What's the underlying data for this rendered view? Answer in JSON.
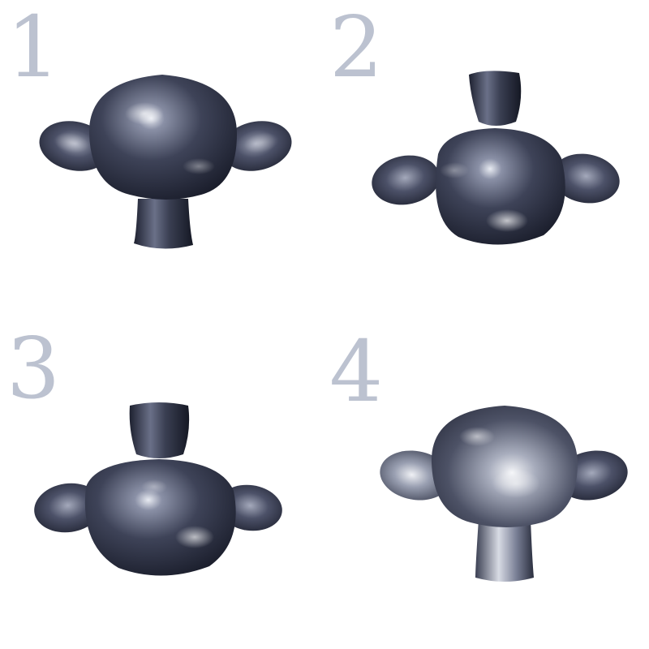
{
  "panels": [
    {
      "label": "1",
      "orientation": "upright",
      "ears": "level"
    },
    {
      "label": "2",
      "orientation": "inverted",
      "ears": "level"
    },
    {
      "label": "3",
      "orientation": "inverted",
      "ears": "level"
    },
    {
      "label": "4",
      "orientation": "upright",
      "ears": "level"
    }
  ],
  "colors": {
    "background": "#ffffff",
    "label": "#bcc2d0",
    "metal_dark": "#1c2030",
    "metal_mid": "#4a5068",
    "metal_light": "#c8ccd8",
    "highlight": "#ffffff"
  }
}
